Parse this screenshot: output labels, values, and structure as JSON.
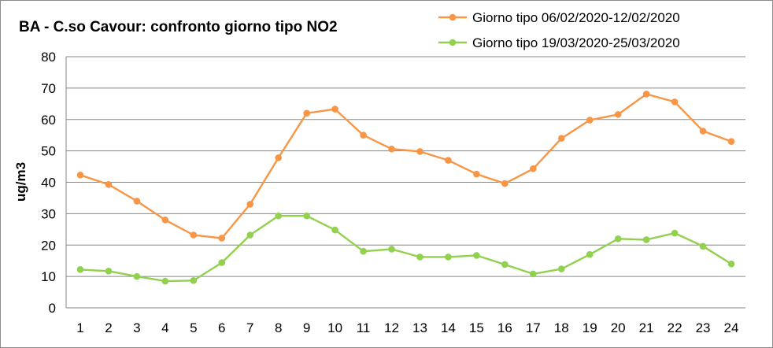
{
  "chart_data": {
    "type": "line",
    "title": "BA - C.so Cavour: confronto giorno tipo NO2",
    "xlabel": "",
    "ylabel": "ug/m3",
    "x": [
      1,
      2,
      3,
      4,
      5,
      6,
      7,
      8,
      9,
      10,
      11,
      12,
      13,
      14,
      15,
      16,
      17,
      18,
      19,
      20,
      21,
      22,
      23,
      24
    ],
    "ylim": [
      0,
      80
    ],
    "yticks": [
      0,
      10,
      20,
      30,
      40,
      50,
      60,
      70,
      80
    ],
    "grid": true,
    "legend_position": "top-right",
    "series": [
      {
        "name": "Giorno tipo 06/02/2020-12/02/2020",
        "color": "#f79646",
        "values": [
          42.3,
          39.3,
          34.0,
          28.0,
          23.2,
          22.2,
          33.0,
          47.8,
          62.0,
          63.3,
          55.0,
          50.6,
          49.8,
          47.0,
          42.6,
          39.6,
          44.3,
          54.0,
          59.8,
          61.6,
          68.1,
          65.6,
          56.3,
          53.0
        ]
      },
      {
        "name": "Giorno tipo 19/03/2020-25/03/2020",
        "color": "#92d050",
        "values": [
          12.2,
          11.7,
          10.0,
          8.5,
          8.7,
          14.4,
          23.2,
          29.3,
          29.3,
          24.8,
          18.0,
          18.7,
          16.2,
          16.2,
          16.7,
          13.8,
          10.8,
          12.4,
          17.0,
          22.0,
          21.7,
          23.8,
          19.6,
          14.0
        ]
      }
    ]
  }
}
